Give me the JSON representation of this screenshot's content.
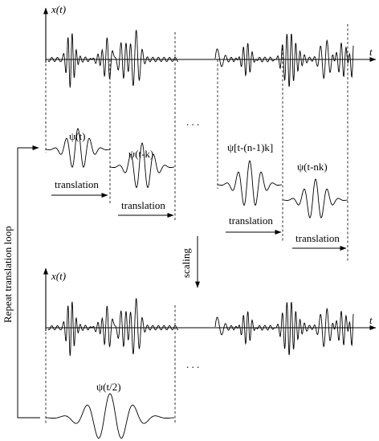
{
  "labels": {
    "x_of_t": "x(t)",
    "t": "t",
    "psi_t": "ψ(t)",
    "psi_t_k": "ψ(t-k)",
    "psi_t_n1k": "ψ[t-(n-1)k]",
    "psi_t_nk": "ψ(t-nk)",
    "psi_t_half": "ψ(t/2)",
    "translation": "translation",
    "scaling": "scaling",
    "ellipsis": ". . .",
    "loop": "Repeat translation loop"
  }
}
